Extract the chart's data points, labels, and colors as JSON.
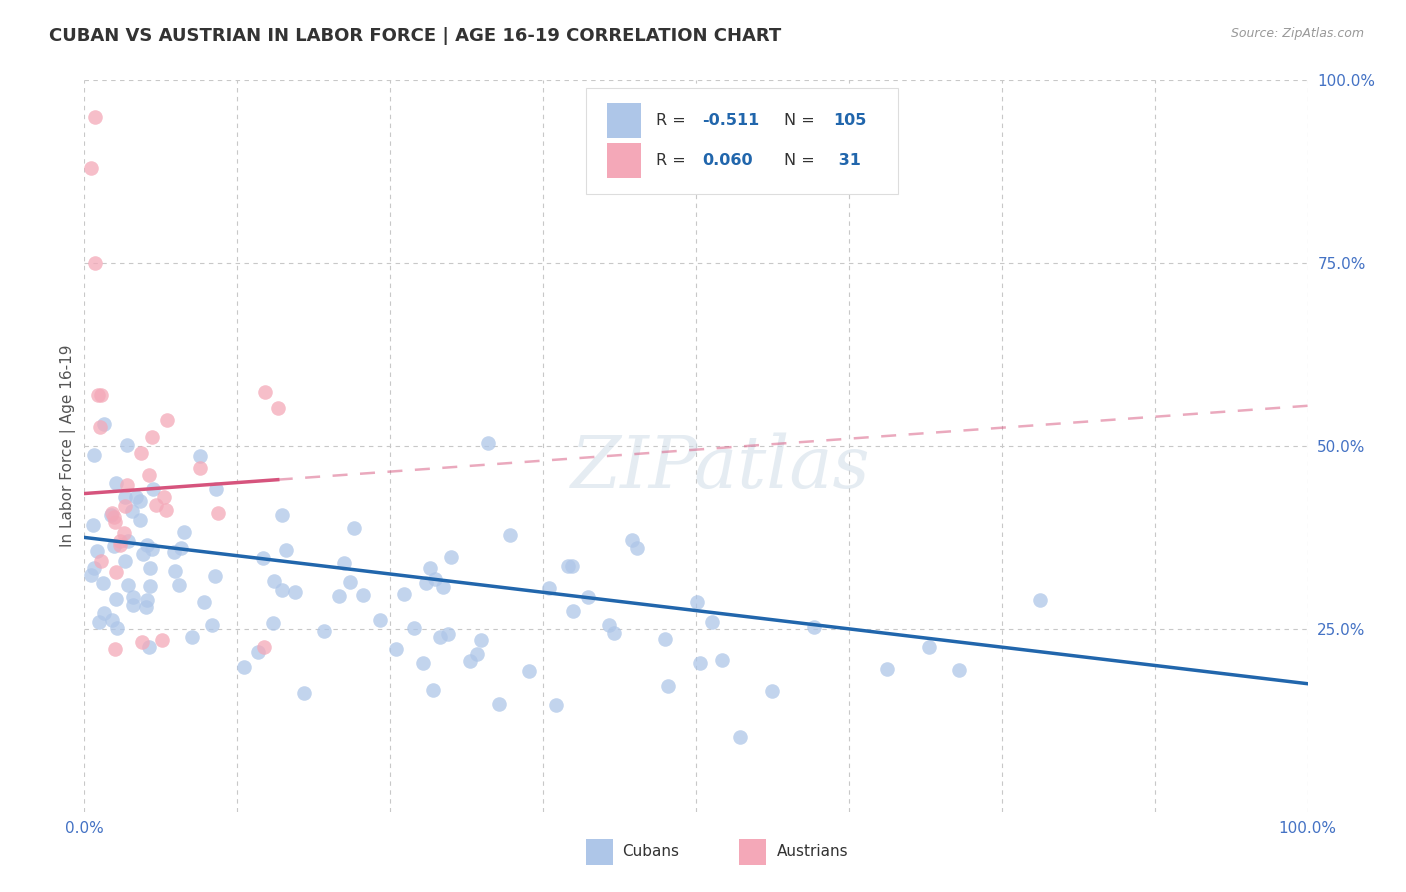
{
  "title": "CUBAN VS AUSTRIAN IN LABOR FORCE | AGE 16-19 CORRELATION CHART",
  "source_text": "Source: ZipAtlas.com",
  "ylabel": "In Labor Force | Age 16-19",
  "xlim": [
    0.0,
    1.0
  ],
  "ylim": [
    0.0,
    1.0
  ],
  "xtick_labels": [
    "0.0%",
    "100.0%"
  ],
  "ytick_right_labels": [
    "100.0%",
    "75.0%",
    "50.0%",
    "25.0%"
  ],
  "ytick_right_values": [
    1.0,
    0.75,
    0.5,
    0.25
  ],
  "watermark": "ZIPatlas",
  "cubans_R": -0.511,
  "cubans_N": 105,
  "austrians_R": 0.06,
  "austrians_N": 31,
  "cubans_color": "#aec6e8",
  "cubans_line_color": "#2166ac",
  "austrians_color": "#f4a8b8",
  "austrians_line_color": "#d6547d",
  "grid_color": "#c8c8c8",
  "background_color": "#ffffff",
  "title_color": "#333333",
  "title_fontsize": 13,
  "axis_label_color": "#555555",
  "right_tick_color": "#4472c4",
  "bottom_tick_color": "#4472c4",
  "legend_box_color": "#dddddd",
  "legend_text_color": "#333333",
  "legend_value_color": "#2166ac"
}
